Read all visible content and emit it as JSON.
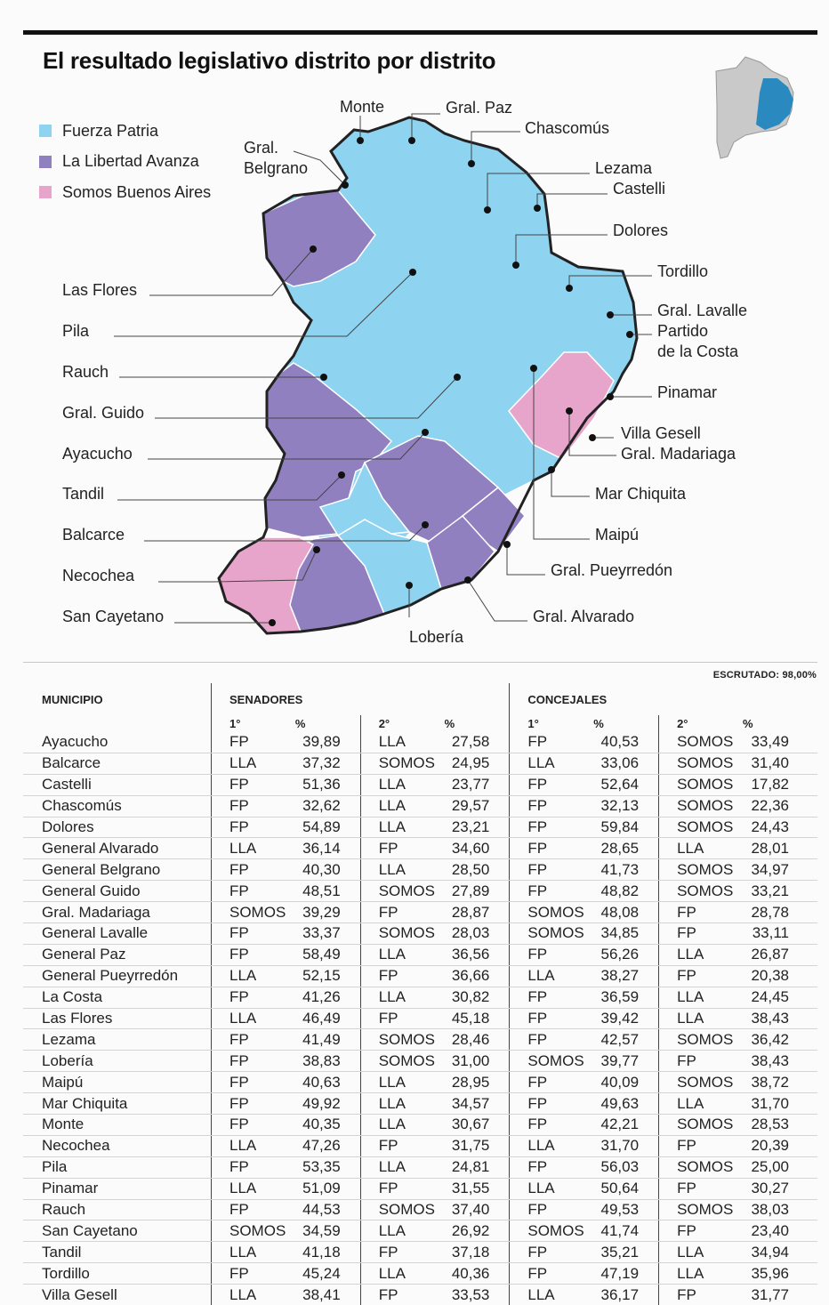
{
  "title": "El resultado legislativo distrito por distrito",
  "legend": [
    {
      "label": "Fuerza Patria",
      "color": "#8ed3f0"
    },
    {
      "label": "La Libertad Avanza",
      "color": "#9180bf"
    },
    {
      "label": "Somos Buenos Aires",
      "color": "#e8a5cc"
    }
  ],
  "map_labels": {
    "monte": "Monte",
    "gral_paz": "Gral. Paz",
    "chascomus": "Chascomús",
    "gral_belgrano": "Gral.\nBelgrano",
    "lezama": "Lezama",
    "castelli": "Castelli",
    "dolores": "Dolores",
    "tordillo": "Tordillo",
    "gral_lavalle": "Gral. Lavalle",
    "partido_costa": "Partido\nde la Costa",
    "pinamar": "Pinamar",
    "villa_gesell": "Villa Gesell",
    "gral_madariaga": "Gral. Madariaga",
    "mar_chiquita": "Mar Chiquita",
    "maipu": "Maipú",
    "gral_pueyrredon": "Gral. Pueyrredón",
    "gral_alvarado": "Gral. Alvarado",
    "loberia": "Lobería",
    "las_flores": "Las Flores",
    "pila": "Pila",
    "rauch": "Rauch",
    "gral_guido": "Gral. Guido",
    "ayacucho": "Ayacucho",
    "tandil": "Tandil",
    "balcarce": "Balcarce",
    "necochea": "Necochea",
    "san_cayetano": "San Cayetano"
  },
  "escrutado": "ESCRUTADO: 98,00%",
  "table": {
    "headers": {
      "municipio": "MUNICIPIO",
      "senadores": "SENADORES",
      "concejales": "CONCEJALES",
      "first": "1°",
      "second": "2°",
      "pct": "%"
    },
    "rows": [
      {
        "municipio": "Ayacucho",
        "sen1": "FP",
        "sen1p": "39,89",
        "sen2": "LLA",
        "sen2p": "27,58",
        "con1": "FP",
        "con1p": "40,53",
        "con2": "SOMOS",
        "con2p": "33,49"
      },
      {
        "municipio": "Balcarce",
        "sen1": "LLA",
        "sen1p": "37,32",
        "sen2": "SOMOS",
        "sen2p": "24,95",
        "con1": "LLA",
        "con1p": "33,06",
        "con2": "SOMOS",
        "con2p": "31,40"
      },
      {
        "municipio": "Castelli",
        "sen1": "FP",
        "sen1p": "51,36",
        "sen2": "LLA",
        "sen2p": "23,77",
        "con1": "FP",
        "con1p": "52,64",
        "con2": "SOMOS",
        "con2p": "17,82"
      },
      {
        "municipio": "Chascomús",
        "sen1": "FP",
        "sen1p": "32,62",
        "sen2": "LLA",
        "sen2p": "29,57",
        "con1": "FP",
        "con1p": "32,13",
        "con2": "SOMOS",
        "con2p": "22,36"
      },
      {
        "municipio": "Dolores",
        "sen1": "FP",
        "sen1p": "54,89",
        "sen2": "LLA",
        "sen2p": "23,21",
        "con1": "FP",
        "con1p": "59,84",
        "con2": "SOMOS",
        "con2p": "24,43"
      },
      {
        "municipio": "General Alvarado",
        "sen1": "LLA",
        "sen1p": "36,14",
        "sen2": "FP",
        "sen2p": "34,60",
        "con1": "FP",
        "con1p": "28,65",
        "con2": "LLA",
        "con2p": "28,01"
      },
      {
        "municipio": "General Belgrano",
        "sen1": "FP",
        "sen1p": "40,30",
        "sen2": "LLA",
        "sen2p": "28,50",
        "con1": "FP",
        "con1p": "41,73",
        "con2": "SOMOS",
        "con2p": "34,97"
      },
      {
        "municipio": "General Guido",
        "sen1": "FP",
        "sen1p": "48,51",
        "sen2": "SOMOS",
        "sen2p": "27,89",
        "con1": "FP",
        "con1p": "48,82",
        "con2": "SOMOS",
        "con2p": "33,21"
      },
      {
        "municipio": "Gral. Madariaga",
        "sen1": "SOMOS",
        "sen1p": "39,29",
        "sen2": "FP",
        "sen2p": "28,87",
        "con1": "SOMOS",
        "con1p": "48,08",
        "con2": "FP",
        "con2p": "28,78"
      },
      {
        "municipio": "General Lavalle",
        "sen1": "FP",
        "sen1p": "33,37",
        "sen2": "SOMOS",
        "sen2p": "28,03",
        "con1": "SOMOS",
        "con1p": "34,85",
        "con2": "FP",
        "con2p": "33,11"
      },
      {
        "municipio": "General Paz",
        "sen1": "FP",
        "sen1p": "58,49",
        "sen2": "LLA",
        "sen2p": "36,56",
        "con1": "FP",
        "con1p": "56,26",
        "con2": "LLA",
        "con2p": "26,87"
      },
      {
        "municipio": "General Pueyrredón",
        "sen1": "LLA",
        "sen1p": "52,15",
        "sen2": "FP",
        "sen2p": "36,66",
        "con1": "LLA",
        "con1p": "38,27",
        "con2": "FP",
        "con2p": "20,38"
      },
      {
        "municipio": "La Costa",
        "sen1": "FP",
        "sen1p": "41,26",
        "sen2": "LLA",
        "sen2p": "30,82",
        "con1": "FP",
        "con1p": "36,59",
        "con2": "LLA",
        "con2p": "24,45"
      },
      {
        "municipio": "Las Flores",
        "sen1": "LLA",
        "sen1p": "46,49",
        "sen2": "FP",
        "sen2p": "45,18",
        "con1": "FP",
        "con1p": "39,42",
        "con2": "LLA",
        "con2p": "38,43"
      },
      {
        "municipio": "Lezama",
        "sen1": "FP",
        "sen1p": "41,49",
        "sen2": "SOMOS",
        "sen2p": "28,46",
        "con1": "FP",
        "con1p": "42,57",
        "con2": "SOMOS",
        "con2p": "36,42"
      },
      {
        "municipio": "Lobería",
        "sen1": "FP",
        "sen1p": "38,83",
        "sen2": "SOMOS",
        "sen2p": "31,00",
        "con1": "SOMOS",
        "con1p": "39,77",
        "con2": "FP",
        "con2p": "38,43"
      },
      {
        "municipio": "Maipú",
        "sen1": "FP",
        "sen1p": "40,63",
        "sen2": "LLA",
        "sen2p": "28,95",
        "con1": "FP",
        "con1p": "40,09",
        "con2": "SOMOS",
        "con2p": "38,72"
      },
      {
        "municipio": "Mar Chiquita",
        "sen1": "FP",
        "sen1p": "49,92",
        "sen2": "LLA",
        "sen2p": "34,57",
        "con1": "FP",
        "con1p": "49,63",
        "con2": "LLA",
        "con2p": "31,70"
      },
      {
        "municipio": "Monte",
        "sen1": "FP",
        "sen1p": "40,35",
        "sen2": "LLA",
        "sen2p": "30,67",
        "con1": "FP",
        "con1p": "42,21",
        "con2": "SOMOS",
        "con2p": "28,53"
      },
      {
        "municipio": "Necochea",
        "sen1": "LLA",
        "sen1p": "47,26",
        "sen2": "FP",
        "sen2p": "31,75",
        "con1": "LLA",
        "con1p": "31,70",
        "con2": "FP",
        "con2p": "20,39"
      },
      {
        "municipio": "Pila",
        "sen1": "FP",
        "sen1p": "53,35",
        "sen2": "LLA",
        "sen2p": "24,81",
        "con1": "FP",
        "con1p": "56,03",
        "con2": "SOMOS",
        "con2p": "25,00"
      },
      {
        "municipio": "Pinamar",
        "sen1": "LLA",
        "sen1p": "51,09",
        "sen2": "FP",
        "sen2p": "31,55",
        "con1": "LLA",
        "con1p": "50,64",
        "con2": "FP",
        "con2p": "30,27"
      },
      {
        "municipio": "Rauch",
        "sen1": "FP",
        "sen1p": "44,53",
        "sen2": "SOMOS",
        "sen2p": "37,40",
        "con1": "FP",
        "con1p": "49,53",
        "con2": "SOMOS",
        "con2p": "38,03"
      },
      {
        "municipio": "San Cayetano",
        "sen1": "SOMOS",
        "sen1p": "34,59",
        "sen2": "LLA",
        "sen2p": "26,92",
        "con1": "SOMOS",
        "con1p": "41,74",
        "con2": "FP",
        "con2p": "23,40"
      },
      {
        "municipio": "Tandil",
        "sen1": "LLA",
        "sen1p": "41,18",
        "sen2": "FP",
        "sen2p": "37,18",
        "con1": "FP",
        "con1p": "35,21",
        "con2": "LLA",
        "con2p": "34,94"
      },
      {
        "municipio": "Tordillo",
        "sen1": "FP",
        "sen1p": "45,24",
        "sen2": "LLA",
        "sen2p": "40,36",
        "con1": "FP",
        "con1p": "47,19",
        "con2": "LLA",
        "con2p": "35,96"
      },
      {
        "municipio": "Villa Gesell",
        "sen1": "LLA",
        "sen1p": "38,41",
        "sen2": "FP",
        "sen2p": "33,53",
        "con1": "LLA",
        "con1p": "36,17",
        "con2": "FP",
        "con2p": "31,77"
      }
    ]
  }
}
